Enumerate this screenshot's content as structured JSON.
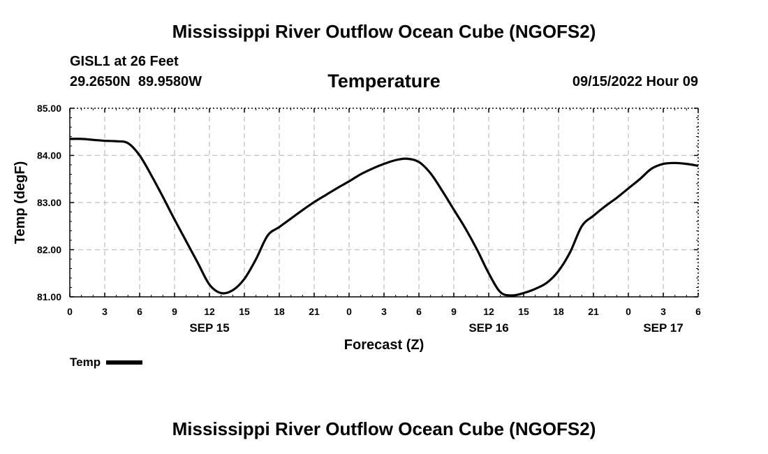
{
  "header": {
    "title": "Mississippi River Outflow Ocean Cube (NGOFS2)",
    "station": "GISL1 at 26 Feet",
    "coords": "29.2650N  89.9580W",
    "datetime": "09/15/2022 Hour 09"
  },
  "footer": {
    "title": "Mississippi River Outflow Ocean Cube (NGOFS2)"
  },
  "legend": {
    "label": "Temp"
  },
  "colors": {
    "line": "#000000",
    "grid": "#c0c0c0",
    "axis": "#000000"
  },
  "chart_data": {
    "type": "line",
    "title": "Temperature",
    "xlabel": "Forecast (Z)",
    "ylabel": "Temp (degF)",
    "xlim": [
      0,
      54
    ],
    "ylim": [
      81.0,
      85.0
    ],
    "x_ticks": [
      0,
      3,
      6,
      9,
      12,
      15,
      18,
      21,
      24,
      27,
      30,
      33,
      36,
      39,
      42,
      45,
      48,
      51,
      54
    ],
    "x_tick_labels": [
      "0",
      "3",
      "6",
      "9",
      "12",
      "15",
      "18",
      "21",
      "0",
      "3",
      "6",
      "9",
      "12",
      "15",
      "18",
      "21",
      "0",
      "3",
      "6"
    ],
    "y_ticks": [
      81.0,
      82.0,
      83.0,
      84.0,
      85.0
    ],
    "y_tick_labels": [
      "81.00",
      "82.00",
      "83.00",
      "84.00",
      "85.00"
    ],
    "date_labels": [
      {
        "x": 12,
        "label": "SEP 15"
      },
      {
        "x": 36,
        "label": "SEP 16"
      },
      {
        "x": 51,
        "label": "SEP 17"
      }
    ],
    "grid": true,
    "legend_position": "bottom-left",
    "series": [
      {
        "name": "Temp",
        "x": [
          0,
          1,
          2,
          3,
          4,
          5,
          6,
          7,
          8,
          9,
          10,
          11,
          12,
          13,
          14,
          15,
          16,
          17,
          18,
          19,
          20,
          21,
          22,
          23,
          24,
          25,
          26,
          27,
          28,
          29,
          30,
          31,
          32,
          33,
          34,
          35,
          36,
          37,
          38,
          39,
          40,
          41,
          42,
          43,
          44,
          45,
          46,
          47,
          48,
          49,
          50,
          51,
          52,
          53,
          54
        ],
        "values": [
          84.35,
          84.35,
          84.33,
          84.31,
          84.3,
          84.26,
          84.0,
          83.58,
          83.12,
          82.64,
          82.18,
          81.72,
          81.26,
          81.08,
          81.14,
          81.38,
          81.8,
          82.3,
          82.48,
          82.66,
          82.84,
          83.01,
          83.16,
          83.31,
          83.45,
          83.6,
          83.72,
          83.82,
          83.9,
          83.93,
          83.86,
          83.62,
          83.25,
          82.85,
          82.45,
          82.0,
          81.5,
          81.1,
          81.03,
          81.08,
          81.17,
          81.3,
          81.55,
          81.95,
          82.5,
          82.72,
          82.92,
          83.1,
          83.3,
          83.5,
          83.72,
          83.82,
          83.84,
          83.82,
          83.78
        ]
      }
    ]
  }
}
